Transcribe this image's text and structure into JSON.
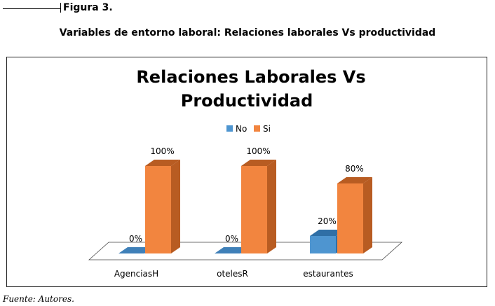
{
  "figure_label": "Figura 3.",
  "caption": "Variables de entorno laboral: Relaciones laborales Vs productividad",
  "source": "Fuente: Autores.",
  "colors": {
    "no": "#4e95d0",
    "si": "#f2853f"
  },
  "chart_data": {
    "type": "bar",
    "title_lines": [
      "Relaciones Laborales  Vs",
      "Productividad"
    ],
    "categories": [
      "AgenciasH",
      "otelesR",
      "estaurantes"
    ],
    "series": [
      {
        "name": "No",
        "values": [
          0,
          0,
          20
        ],
        "labels": [
          "0%",
          "0%",
          "20%"
        ]
      },
      {
        "name": "Si",
        "values": [
          100,
          100,
          80
        ],
        "labels": [
          "100%",
          "100%",
          "80%"
        ]
      }
    ],
    "ylim": [
      0,
      100
    ],
    "legend": "top-center",
    "grid": false,
    "style": "3d-column"
  }
}
